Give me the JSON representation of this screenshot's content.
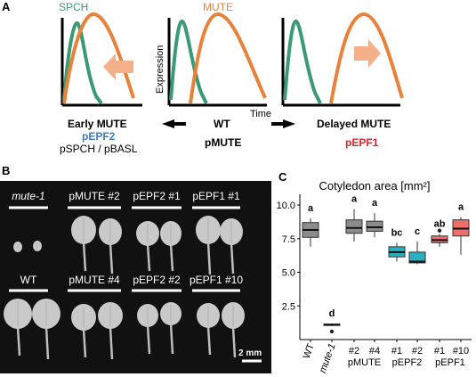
{
  "panel_a": {
    "label": "A",
    "legend": {
      "spch": "SPCH",
      "mute": "MUTE"
    },
    "colors": {
      "spch": "#3a9b72",
      "mute": "#e8823a",
      "arrow": "#f4b189",
      "pepf2": "#3a7dbf",
      "pepf1": "#d9262c"
    },
    "y_axis_label": "Expression",
    "x_axis_label": "Time",
    "left": {
      "title": "Early MUTE",
      "line2": "pEPF2",
      "line3": "pSPCH / pBASL"
    },
    "center": {
      "title": "WT",
      "line2": "pMUTE"
    },
    "right": {
      "title": "Delayed MUTE",
      "line2": "pEPF1"
    }
  },
  "panel_b": {
    "label": "B",
    "top_row": [
      "mute-1",
      "pMUTE #2",
      "pEPF2 #1",
      "pEPF1 #1"
    ],
    "bottom_row": [
      "WT",
      "pMUTE #4",
      "pEPF2 #2",
      "pEPF1 #10"
    ],
    "scale_bar": "2 mm"
  },
  "panel_c": {
    "label": "C",
    "chart_data": {
      "type": "boxplot",
      "title": "Cotyledon area [mm²]",
      "ylim": [
        0,
        10.8
      ],
      "yticks": [
        "2.5",
        "5.0",
        "7.5",
        "10.0"
      ],
      "categories": [
        "WT",
        "mute-1",
        "#2",
        "#4",
        "#1",
        "#2",
        "#1",
        "#10"
      ],
      "groups": [
        {
          "label": "pMUTE",
          "members": [
            2,
            3
          ]
        },
        {
          "label": "pEPF2",
          "members": [
            4,
            5
          ]
        },
        {
          "label": "pEPF1",
          "members": [
            6,
            7
          ]
        }
      ],
      "letters": [
        "a",
        "d",
        "a",
        "a",
        "bc",
        "c",
        "ab",
        "a"
      ],
      "colors": [
        "#8c8c8c",
        "#8c8c8c",
        "#8c8c8c",
        "#8c8c8c",
        "#2ab0bf",
        "#2ab0bf",
        "#ef6e6a",
        "#ef6e6a"
      ],
      "boxes": [
        {
          "min": 6.9,
          "q1": 7.6,
          "median": 8.15,
          "q3": 8.7,
          "max": 9.0,
          "outliers": []
        },
        {
          "min": 1.0,
          "q1": 1.05,
          "median": 1.1,
          "q3": 1.15,
          "max": 1.2,
          "outliers": [
            0.6
          ]
        },
        {
          "min": 7.3,
          "q1": 7.9,
          "median": 8.3,
          "q3": 8.9,
          "max": 9.7,
          "outliers": []
        },
        {
          "min": 7.6,
          "q1": 8.05,
          "median": 8.35,
          "q3": 8.8,
          "max": 9.4,
          "outliers": []
        },
        {
          "min": 5.8,
          "q1": 6.15,
          "median": 6.5,
          "q3": 6.9,
          "max": 7.2,
          "outliers": []
        },
        {
          "min": 5.6,
          "q1": 5.7,
          "median": 5.8,
          "q3": 6.5,
          "max": 7.3,
          "outliers": []
        },
        {
          "min": 6.9,
          "q1": 7.2,
          "median": 7.4,
          "q3": 7.7,
          "max": 7.85,
          "outliers": [
            8.1
          ]
        },
        {
          "min": 6.3,
          "q1": 7.7,
          "median": 8.25,
          "q3": 8.9,
          "max": 9.1,
          "outliers": []
        }
      ]
    }
  }
}
